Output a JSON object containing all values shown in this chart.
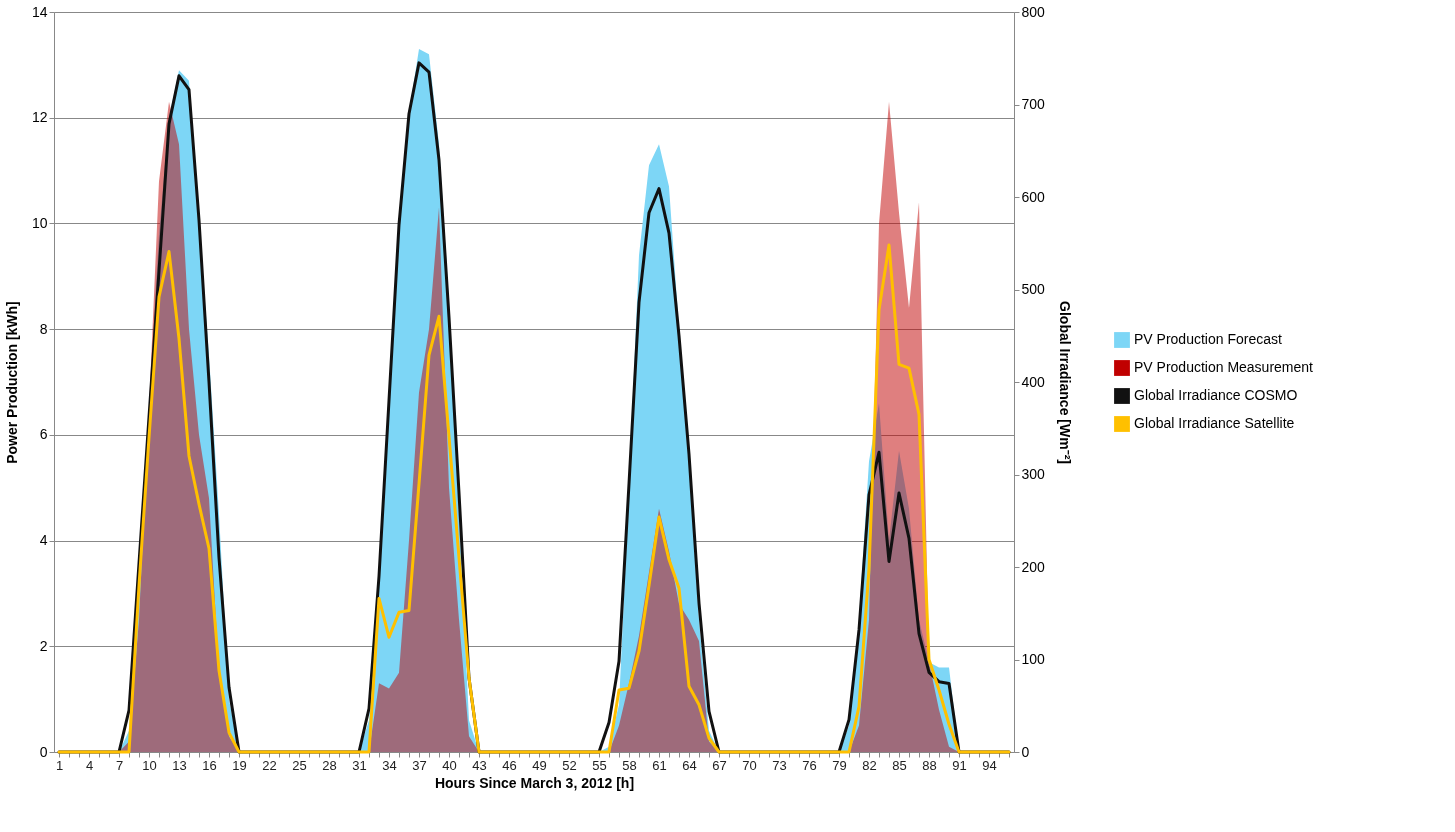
{
  "chart_data": {
    "type": "area",
    "xlabel": "Hours Since March 3, 2012 [h]",
    "ylabel": "Power Production [kWh]",
    "y2label": "Global Irradiance [Wm⁻²]",
    "x": [
      1,
      2,
      3,
      4,
      5,
      6,
      7,
      8,
      9,
      10,
      11,
      12,
      13,
      14,
      15,
      16,
      17,
      18,
      19,
      20,
      21,
      22,
      23,
      24,
      25,
      26,
      27,
      28,
      29,
      30,
      31,
      32,
      33,
      34,
      35,
      36,
      37,
      38,
      39,
      40,
      41,
      42,
      43,
      44,
      45,
      46,
      47,
      48,
      49,
      50,
      51,
      52,
      53,
      54,
      55,
      56,
      57,
      58,
      59,
      60,
      61,
      62,
      63,
      64,
      65,
      66,
      67,
      68,
      69,
      70,
      71,
      72,
      73,
      74,
      75,
      76,
      77,
      78,
      79,
      80,
      81,
      82,
      83,
      84,
      85,
      86,
      87,
      88,
      89,
      90,
      91,
      92,
      93,
      94,
      95,
      96
    ],
    "xlim": [
      0.5,
      96.5
    ],
    "xticks": [
      1,
      {
        "value": 2,
        "label": null
      },
      {
        "value": 3,
        "label": null
      },
      4,
      {
        "value": 5,
        "label": null
      },
      {
        "value": 6,
        "label": null
      },
      7,
      {
        "value": 8,
        "label": null
      },
      {
        "value": 9,
        "label": null
      },
      10,
      {
        "value": 11,
        "label": null
      },
      {
        "value": 12,
        "label": null
      },
      13,
      {
        "value": 14,
        "label": null
      },
      {
        "value": 15,
        "label": null
      },
      16,
      {
        "value": 17,
        "label": null
      },
      {
        "value": 18,
        "label": null
      },
      19,
      {
        "value": 20,
        "label": null
      },
      {
        "value": 21,
        "label": null
      },
      22,
      {
        "value": 23,
        "label": null
      },
      {
        "value": 24,
        "label": null
      },
      25,
      {
        "value": 26,
        "label": null
      },
      {
        "value": 27,
        "label": null
      },
      28,
      {
        "value": 29,
        "label": null
      },
      {
        "value": 30,
        "label": null
      },
      31,
      {
        "value": 32,
        "label": null
      },
      {
        "value": 33,
        "label": null
      },
      34,
      {
        "value": 35,
        "label": null
      },
      {
        "value": 36,
        "label": null
      },
      37,
      {
        "value": 38,
        "label": null
      },
      {
        "value": 39,
        "label": null
      },
      40,
      {
        "value": 41,
        "label": null
      },
      {
        "value": 42,
        "label": null
      },
      43,
      {
        "value": 44,
        "label": null
      },
      {
        "value": 45,
        "label": null
      },
      46,
      {
        "value": 47,
        "label": null
      },
      {
        "value": 48,
        "label": null
      },
      49,
      {
        "value": 50,
        "label": null
      },
      {
        "value": 51,
        "label": null
      },
      52,
      {
        "value": 53,
        "label": null
      },
      {
        "value": 54,
        "label": null
      },
      55,
      {
        "value": 56,
        "label": null
      },
      {
        "value": 57,
        "label": null
      },
      58,
      {
        "value": 59,
        "label": null
      },
      {
        "value": 60,
        "label": null
      },
      61,
      {
        "value": 62,
        "label": null
      },
      {
        "value": 63,
        "label": null
      },
      64,
      {
        "value": 65,
        "label": null
      },
      {
        "value": 66,
        "label": null
      },
      67,
      {
        "value": 68,
        "label": null
      },
      {
        "value": 69,
        "label": null
      },
      70,
      {
        "value": 71,
        "label": null
      },
      {
        "value": 72,
        "label": null
      },
      73,
      {
        "value": 74,
        "label": null
      },
      {
        "value": 75,
        "label": null
      },
      76,
      {
        "value": 77,
        "label": null
      },
      {
        "value": 78,
        "label": null
      },
      79,
      {
        "value": 80,
        "label": null
      },
      {
        "value": 81,
        "label": null
      },
      82,
      {
        "value": 83,
        "label": null
      },
      {
        "value": 84,
        "label": null
      },
      85,
      {
        "value": 86,
        "label": null
      },
      {
        "value": 87,
        "label": null
      },
      88,
      {
        "value": 89,
        "label": null
      },
      {
        "value": 90,
        "label": null
      },
      91,
      {
        "value": 92,
        "label": null
      },
      {
        "value": 93,
        "label": null
      },
      94,
      {
        "value": 95,
        "label": null
      },
      {
        "value": 96,
        "label": null
      }
    ],
    "ylim": [
      0,
      14
    ],
    "yticks": [
      0,
      2,
      4,
      6,
      8,
      10,
      12,
      14
    ],
    "y2lim": [
      0,
      800
    ],
    "y2ticks": [
      0,
      100,
      200,
      300,
      400,
      500,
      600,
      700,
      800
    ],
    "grid": "y",
    "legend": "right",
    "line_style": "solid",
    "series": [
      {
        "name": "PV Production Forecast",
        "color": "#7dd6f6",
        "values": [
          0,
          0,
          0,
          0,
          0,
          0,
          0,
          0.4,
          3.2,
          6.5,
          9.8,
          12.0,
          12.9,
          12.7,
          10.0,
          7.5,
          4.5,
          1.0,
          0,
          0,
          0,
          0,
          0,
          0,
          0,
          0,
          0,
          0,
          0,
          0,
          0,
          0.6,
          3.5,
          6.8,
          10.0,
          12.1,
          13.3,
          13.2,
          11.5,
          8.5,
          4.5,
          0.6,
          0,
          0,
          0,
          0,
          0,
          0,
          0,
          0,
          0,
          0,
          0,
          0,
          0,
          0.1,
          0.9,
          5.0,
          9.4,
          11.1,
          11.5,
          10.7,
          8.0,
          5.5,
          2.5,
          0.4,
          0,
          0,
          0,
          0,
          0,
          0,
          0,
          0,
          0,
          0,
          0,
          0,
          0,
          0.5,
          2.5,
          5.5,
          6.6,
          4.0,
          5.7,
          4.6,
          2.5,
          1.7,
          1.6,
          1.6,
          0,
          0,
          0,
          0,
          0,
          0
        ]
      },
      {
        "name": "PV Production Measurement",
        "color": "#c00000",
        "values": [
          0,
          0,
          0,
          0,
          0,
          0,
          0,
          0.2,
          2.5,
          6.5,
          10.8,
          12.3,
          11.5,
          8.0,
          6.0,
          4.8,
          1.5,
          0.3,
          0,
          0,
          0,
          0,
          0,
          0,
          0,
          0,
          0,
          0,
          0,
          0,
          0,
          0,
          1.3,
          1.2,
          1.5,
          4.0,
          6.8,
          8.0,
          10.3,
          5.0,
          2.5,
          0.3,
          0,
          0,
          0,
          0,
          0,
          0,
          0,
          0,
          0,
          0,
          0,
          0,
          0,
          0,
          0.5,
          1.3,
          2.2,
          3.4,
          4.6,
          3.8,
          2.8,
          2.5,
          2.1,
          0.2,
          0,
          0,
          0,
          0,
          0,
          0,
          0,
          0,
          0,
          0,
          0,
          0,
          0,
          0,
          0.5,
          2.5,
          10.0,
          12.3,
          10.2,
          8.4,
          10.4,
          1.7,
          0.8,
          0.1,
          0,
          0,
          0,
          0,
          0,
          0
        ]
      },
      {
        "name": "Global Irradiance COSMO",
        "type": "line",
        "axis": "y2",
        "color": "#111111",
        "values": [
          0,
          0,
          0,
          0,
          0,
          0,
          0,
          45,
          204,
          362,
          520,
          679,
          731,
          716,
          575,
          400,
          210,
          70,
          0,
          0,
          0,
          0,
          0,
          0,
          0,
          0,
          0,
          0,
          0,
          0,
          0,
          47,
          190,
          380,
          570,
          690,
          745,
          735,
          640,
          470,
          280,
          80,
          0,
          0,
          0,
          0,
          0,
          0,
          0,
          0,
          0,
          0,
          0,
          0,
          0,
          32,
          98,
          290,
          486,
          583,
          609,
          561,
          450,
          322,
          161,
          44,
          0,
          0,
          0,
          0,
          0,
          0,
          0,
          0,
          0,
          0,
          0,
          0,
          0,
          35,
          132,
          278,
          324,
          206,
          280,
          231,
          128,
          86,
          76,
          74,
          0,
          0,
          0,
          0,
          0,
          0
        ]
      },
      {
        "name": "Global Irradiance Satellite",
        "type": "line",
        "axis": "y2",
        "color": "#ffc000",
        "values": [
          0,
          0,
          0,
          0,
          0,
          0,
          0,
          0,
          180,
          340,
          492,
          541,
          447,
          320,
          268,
          220,
          88,
          21,
          0,
          0,
          0,
          0,
          0,
          0,
          0,
          0,
          0,
          0,
          0,
          0,
          0,
          0,
          166,
          124,
          151,
          153,
          290,
          429,
          471,
          341,
          210,
          80,
          0,
          0,
          0,
          0,
          0,
          0,
          0,
          0,
          0,
          0,
          0,
          0,
          0,
          0,
          67,
          69,
          109,
          180,
          254,
          208,
          177,
          71,
          51,
          15,
          0,
          0,
          0,
          0,
          0,
          0,
          0,
          0,
          0,
          0,
          0,
          0,
          0,
          0,
          49,
          198,
          478,
          548,
          419,
          415,
          365,
          100,
          67,
          30,
          0,
          0,
          0,
          0,
          0,
          0
        ]
      }
    ]
  }
}
